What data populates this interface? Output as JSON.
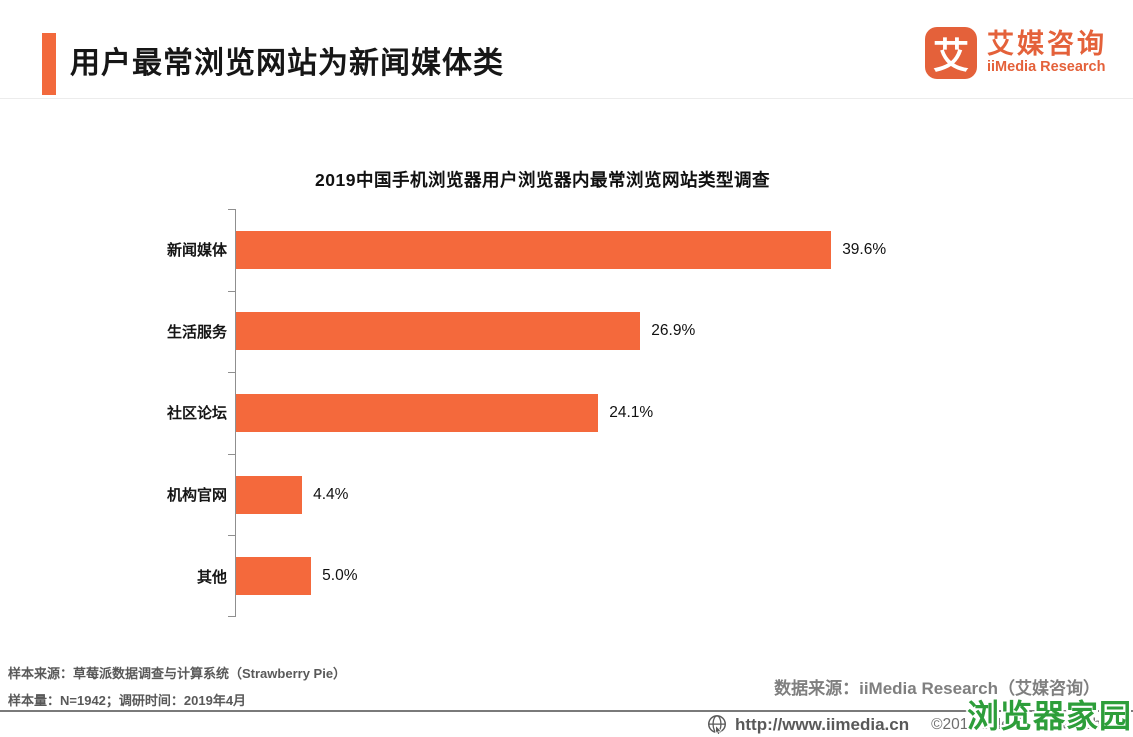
{
  "header": {
    "title": "用户最常浏览网站为新闻媒体类",
    "logo": {
      "glyph": "艾",
      "name_cn": "艾媒咨询",
      "name_en": "iiMedia Research"
    }
  },
  "chart_data": {
    "type": "bar",
    "orientation": "horizontal",
    "title": "2019中国手机浏览器用户浏览器内最常浏览网站类型调查",
    "categories": [
      "新闻媒体",
      "生活服务",
      "社区论坛",
      "机构官网",
      "其他"
    ],
    "values": [
      39.6,
      26.9,
      24.1,
      4.4,
      5.0
    ],
    "value_labels": [
      "39.6%",
      "26.9%",
      "24.1%",
      "4.4%",
      "5.0%"
    ],
    "unit": "%",
    "xlim": [
      0,
      42
    ],
    "bar_color": "#F4693C",
    "axis_color": "#8f8f8f",
    "grid": false,
    "legend": false
  },
  "footnotes": {
    "sample_source": "样本来源：草莓派数据调查与计算系统（Strawberry Pie）",
    "sample_info": "样本量：N=1942；调研时间：2019年4月",
    "data_source": "数据来源：iiMedia Research（艾媒咨询）"
  },
  "footer": {
    "url": "http://www.iimedia.cn",
    "copyright": "©2019 iiMedia Research Inc",
    "watermark": "浏览器家园"
  },
  "colors": {
    "accent_orange": "#F2693C",
    "logo_orange": "#E4613A",
    "watermark_green": "#2D9E3A"
  }
}
